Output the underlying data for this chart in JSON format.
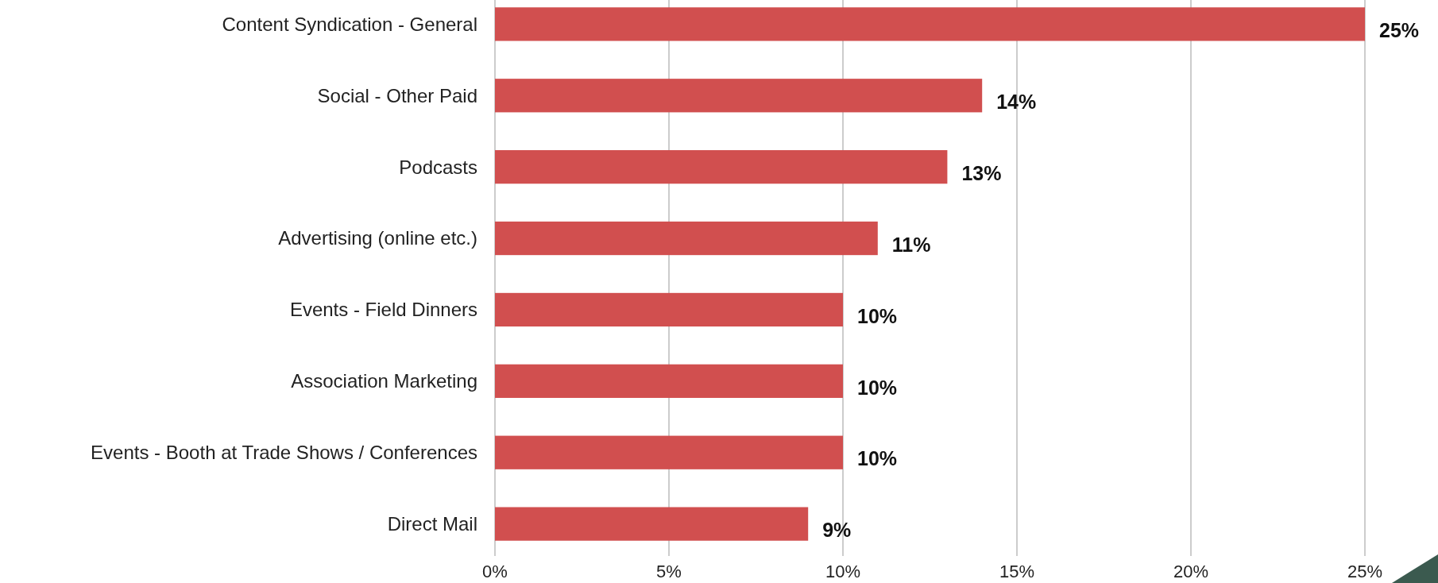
{
  "chart_data": {
    "type": "bar",
    "orientation": "horizontal",
    "categories": [
      "Content Syndication - General",
      "Social - Other Paid",
      "Podcasts",
      "Advertising (online etc.)",
      "Events - Field Dinners",
      "Association Marketing",
      "Events - Booth at Trade Shows / Conferences",
      "Direct Mail"
    ],
    "values": [
      25,
      14,
      13,
      11,
      10,
      10,
      10,
      9
    ],
    "value_labels": [
      "25%",
      "14%",
      "13%",
      "11%",
      "10%",
      "10%",
      "10%",
      "9%"
    ],
    "color": "#d14f4f",
    "xlim": [
      0,
      25
    ],
    "xticks": [
      {
        "value": 0,
        "label": "0%"
      },
      {
        "value": 5,
        "label": "5%"
      },
      {
        "value": 10,
        "label": "10%"
      },
      {
        "value": 15,
        "label": "15%"
      },
      {
        "value": 20,
        "label": "20%"
      },
      {
        "value": 25,
        "label": "25%"
      }
    ],
    "grid": "x"
  }
}
